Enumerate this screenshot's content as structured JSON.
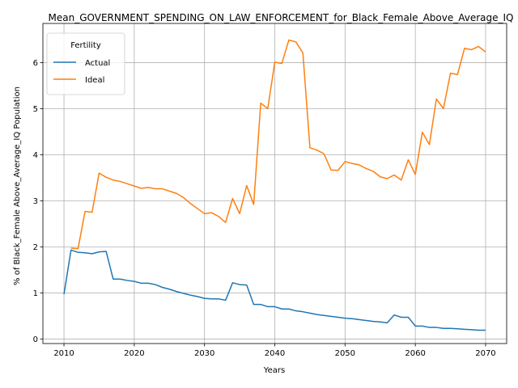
{
  "chart_data": {
    "type": "line",
    "title": "Mean_GOVERNMENT_SPENDING_ON_LAW_ENFORCEMENT_for_Black_Female_Above_Average_IQ",
    "xlabel": "Years",
    "ylabel": "% of Black_Female Above_Average_IQ Population",
    "xlim": [
      2007,
      2073
    ],
    "ylim": [
      -0.1,
      6.85
    ],
    "x_ticks": [
      2010,
      2020,
      2030,
      2040,
      2050,
      2060,
      2070
    ],
    "y_ticks": [
      0,
      1,
      2,
      3,
      4,
      5,
      6
    ],
    "grid": true,
    "legend": {
      "title": "Fertility",
      "position": "top-left"
    },
    "x": [
      2010,
      2011,
      2012,
      2013,
      2014,
      2015,
      2016,
      2017,
      2018,
      2019,
      2020,
      2021,
      2022,
      2023,
      2024,
      2025,
      2026,
      2027,
      2028,
      2029,
      2030,
      2031,
      2032,
      2033,
      2034,
      2035,
      2036,
      2037,
      2038,
      2039,
      2040,
      2041,
      2042,
      2043,
      2044,
      2045,
      2046,
      2047,
      2048,
      2049,
      2050,
      2051,
      2052,
      2053,
      2054,
      2055,
      2056,
      2057,
      2058,
      2059,
      2060,
      2061,
      2062,
      2063,
      2064,
      2065,
      2066,
      2067,
      2068,
      2069,
      2070
    ],
    "series": [
      {
        "name": "Actual",
        "color": "#1f77b4",
        "values": [
          0.97,
          1.93,
          1.88,
          1.87,
          1.85,
          1.89,
          1.9,
          1.3,
          1.3,
          1.27,
          1.25,
          1.21,
          1.21,
          1.18,
          1.12,
          1.08,
          1.03,
          0.99,
          0.95,
          0.92,
          0.88,
          0.87,
          0.87,
          0.84,
          1.22,
          1.18,
          1.17,
          0.75,
          0.75,
          0.7,
          0.7,
          0.65,
          0.65,
          0.61,
          0.59,
          0.56,
          0.53,
          0.51,
          0.49,
          0.47,
          0.45,
          0.44,
          0.42,
          0.4,
          0.38,
          0.37,
          0.35,
          0.52,
          0.47,
          0.47,
          0.28,
          0.28,
          0.25,
          0.25,
          0.23,
          0.23,
          0.22,
          0.21,
          0.2,
          0.19,
          0.19
        ]
      },
      {
        "name": "Ideal",
        "color": "#ff7f0e",
        "values": [
          null,
          1.97,
          1.96,
          2.77,
          2.75,
          3.6,
          3.51,
          3.45,
          3.42,
          3.37,
          3.32,
          3.27,
          3.29,
          3.26,
          3.26,
          3.21,
          3.16,
          3.07,
          2.94,
          2.83,
          2.72,
          2.74,
          2.66,
          2.53,
          3.05,
          2.72,
          3.33,
          2.92,
          5.12,
          5.0,
          6.01,
          5.98,
          6.49,
          6.45,
          6.21,
          4.15,
          4.1,
          4.02,
          3.67,
          3.66,
          3.85,
          3.81,
          3.78,
          3.7,
          3.64,
          3.52,
          3.48,
          3.56,
          3.45,
          3.89,
          3.57,
          4.49,
          4.22,
          5.21,
          5.0,
          5.77,
          5.74,
          6.31,
          6.28,
          6.35,
          6.23
        ]
      }
    ]
  }
}
